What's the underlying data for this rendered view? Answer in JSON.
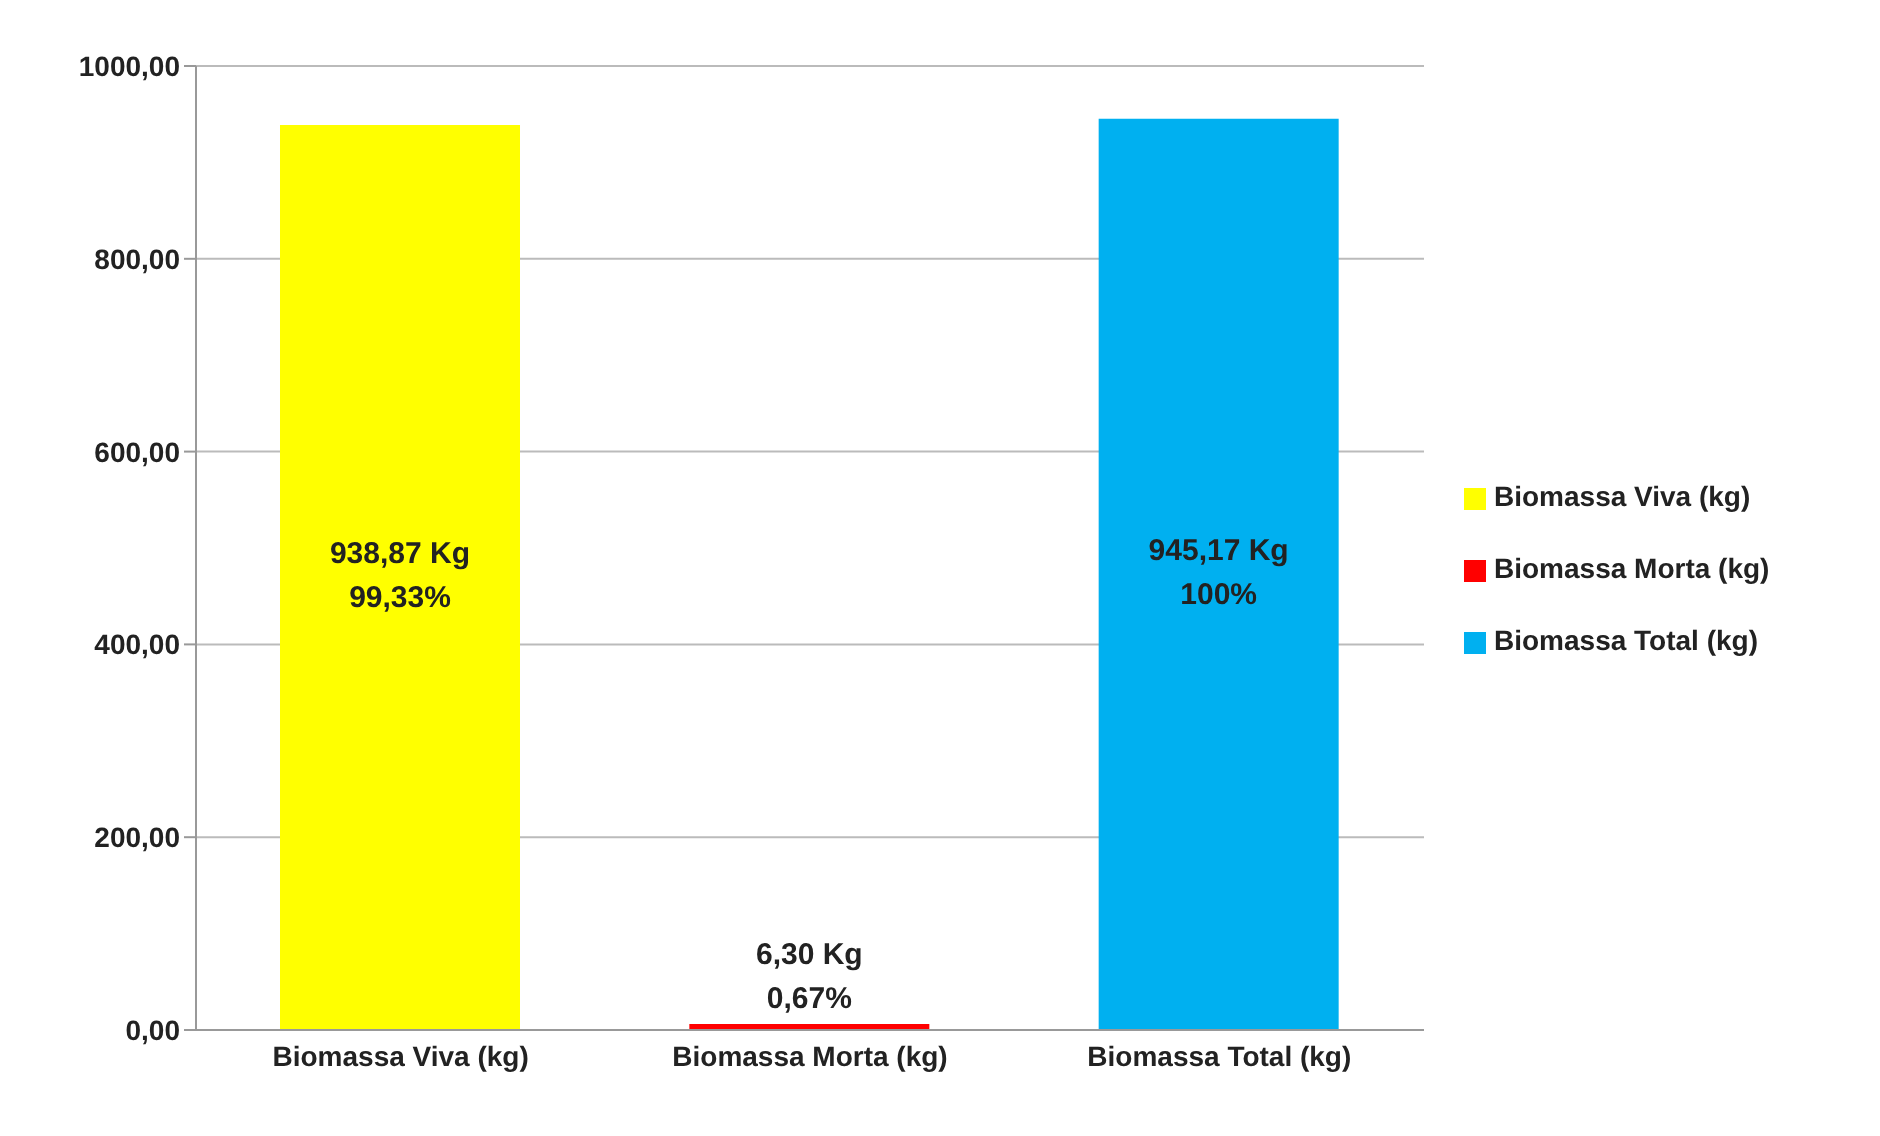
{
  "chart_data": {
    "type": "bar",
    "categories": [
      "Biomassa Viva (kg)",
      "Biomassa Morta (kg)",
      "Biomassa Total (kg)"
    ],
    "series": [
      {
        "name": "Biomassa Viva (kg)",
        "color": "#ffff00",
        "values": [
          938.87,
          null,
          null
        ],
        "value_labels": [
          "938,87 Kg\n99,33%",
          null,
          null
        ]
      },
      {
        "name": "Biomassa Morta (kg)",
        "color": "#ff0000",
        "values": [
          null,
          6.3,
          null
        ],
        "value_labels": [
          null,
          "6,30 Kg\n0,67%",
          null
        ]
      },
      {
        "name": "Biomassa Total (kg)",
        "color": "#00b0f0",
        "values": [
          null,
          null,
          945.17
        ],
        "value_labels": [
          null,
          null,
          "945,17 Kg\n100%"
        ]
      }
    ],
    "ylim": [
      0,
      1000
    ],
    "yticks": [
      {
        "value": 0,
        "label": "0,00"
      },
      {
        "value": 200,
        "label": "200,00"
      },
      {
        "value": 400,
        "label": "400,00"
      },
      {
        "value": 600,
        "label": "600,00"
      },
      {
        "value": 800,
        "label": "800,00"
      },
      {
        "value": 1000,
        "label": "1000,00"
      }
    ],
    "grid": "y",
    "legend": "right"
  }
}
